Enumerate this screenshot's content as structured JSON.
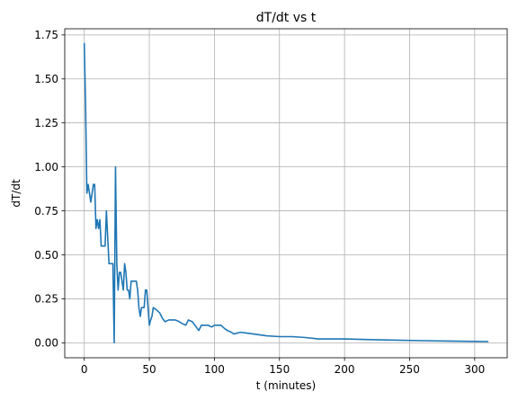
{
  "chart_data": {
    "type": "line",
    "title": "dT/dt vs t",
    "xlabel": "t (minutes)",
    "ylabel": "dT/dt",
    "xlim": [
      -15,
      325
    ],
    "ylim": [
      -0.085,
      1.785
    ],
    "xticks": [
      0,
      50,
      100,
      150,
      200,
      250,
      300
    ],
    "xtick_labels": [
      "0",
      "50",
      "100",
      "150",
      "200",
      "250",
      "300"
    ],
    "yticks": [
      0,
      0.25,
      0.5,
      0.75,
      1.0,
      1.25,
      1.5,
      1.75
    ],
    "ytick_labels": [
      "0.00",
      "0.25",
      "0.50",
      "0.75",
      "1.00",
      "1.25",
      "1.50",
      "1.75"
    ],
    "grid": true,
    "line_color": "#1f77b4",
    "grid_color": "#b0b0b0",
    "series": [
      {
        "x": [
          0,
          1,
          2,
          3,
          4,
          5,
          6,
          7,
          8,
          9,
          10,
          11,
          12,
          13,
          14,
          15,
          16,
          17,
          18,
          19,
          20,
          21,
          22,
          23,
          24,
          25,
          26,
          27,
          28,
          29,
          30,
          31,
          32,
          33,
          34,
          35,
          36,
          37,
          38,
          39,
          40,
          41,
          42,
          43,
          44,
          45,
          46,
          47,
          48,
          49,
          50,
          51,
          52,
          53,
          55,
          58,
          60,
          62,
          65,
          68,
          70,
          73,
          75,
          78,
          80,
          83,
          85,
          88,
          90,
          93,
          95,
          98,
          100,
          103,
          105,
          108,
          110,
          113,
          115,
          120,
          125,
          130,
          140,
          150,
          160,
          170,
          180,
          200,
          220,
          240,
          260,
          280,
          300,
          310
        ],
        "y": [
          1.7,
          1.35,
          0.85,
          0.9,
          0.85,
          0.8,
          0.85,
          0.9,
          0.9,
          0.65,
          0.7,
          0.65,
          0.7,
          0.55,
          0.55,
          0.55,
          0.55,
          0.75,
          0.6,
          0.45,
          0.45,
          0.45,
          0.45,
          0.0,
          1.0,
          0.45,
          0.3,
          0.4,
          0.4,
          0.35,
          0.3,
          0.45,
          0.4,
          0.3,
          0.3,
          0.25,
          0.35,
          0.35,
          0.35,
          0.35,
          0.35,
          0.3,
          0.2,
          0.15,
          0.2,
          0.2,
          0.2,
          0.3,
          0.3,
          0.2,
          0.1,
          0.13,
          0.15,
          0.2,
          0.19,
          0.17,
          0.14,
          0.12,
          0.13,
          0.13,
          0.13,
          0.12,
          0.11,
          0.1,
          0.13,
          0.12,
          0.1,
          0.07,
          0.1,
          0.1,
          0.1,
          0.09,
          0.1,
          0.1,
          0.1,
          0.08,
          0.07,
          0.06,
          0.05,
          0.06,
          0.055,
          0.05,
          0.04,
          0.035,
          0.035,
          0.03,
          0.022,
          0.022,
          0.018,
          0.015,
          0.012,
          0.01,
          0.008,
          0.007
        ]
      }
    ]
  }
}
